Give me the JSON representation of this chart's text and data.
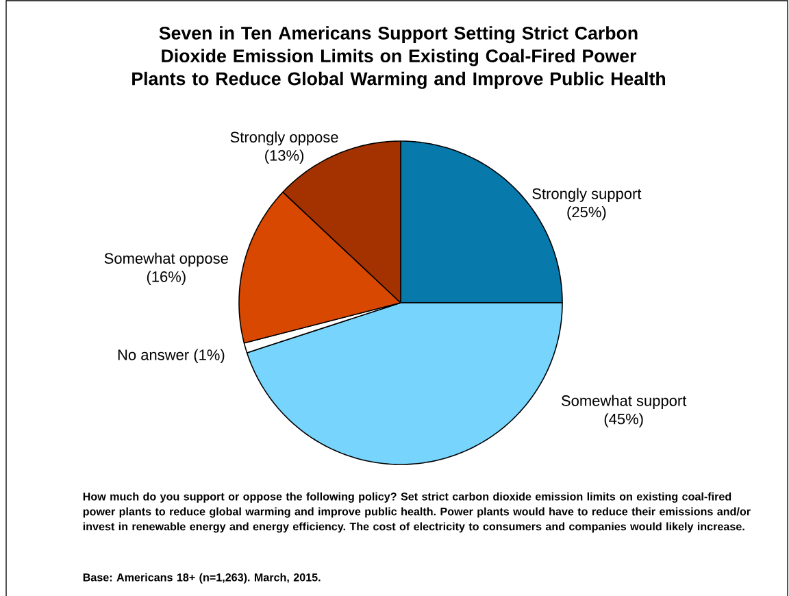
{
  "chart_data": {
    "type": "pie",
    "title": "Seven in Ten Americans Support Setting Strict Carbon Dioxide Emission Limits on Existing Coal-Fired Power Plants to Reduce Global Warming and Improve Public Health",
    "categories": [
      "Strongly support",
      "Somewhat support",
      "No answer",
      "Somewhat oppose",
      "Strongly oppose"
    ],
    "values": [
      25,
      45,
      1,
      16,
      13
    ],
    "value_labels": [
      "(25%)",
      "(45%)",
      "(1%)",
      "(16%)",
      "(13%)"
    ],
    "colors": [
      "#0779ab",
      "#76d4fd",
      "#ffffff",
      "#d94800",
      "#a33200"
    ],
    "annotations": [
      "How much do you support or oppose the following policy? Set strict carbon dioxide emission limits on existing coal-fired power plants to reduce global warming and improve public health. Power plants would have to reduce their emissions and/or invest in renewable energy and energy efficiency. The cost of electricity to consumers and companies would likely increase.",
      "Base: Americans 18+ (n=1,263). March, 2015."
    ]
  }
}
